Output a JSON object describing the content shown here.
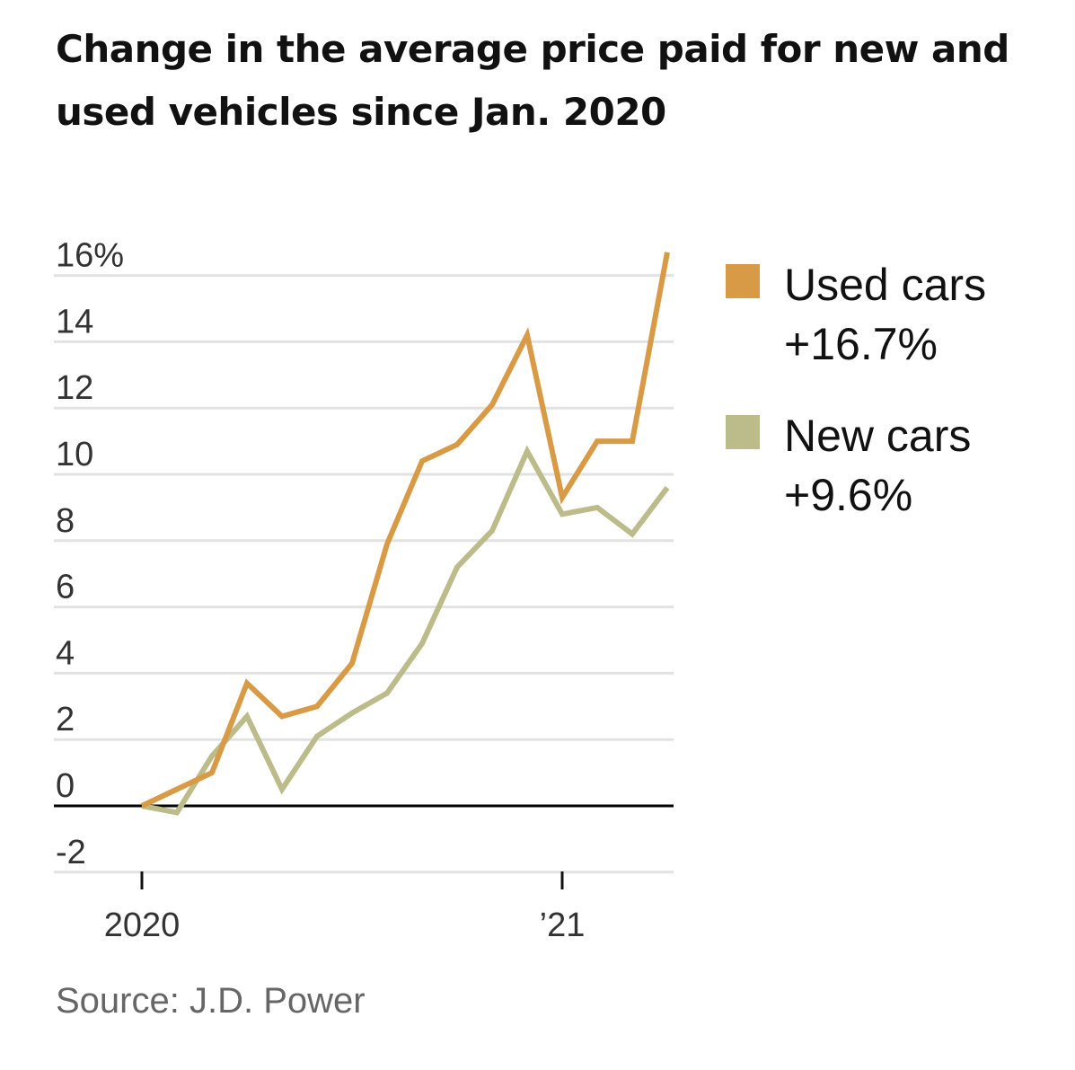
{
  "title": "Change in the average price paid for new and used vehicles since Jan. 2020",
  "source": "Source: J.D. Power",
  "chart_data": {
    "type": "line",
    "title": "Change in the average price paid for new and used vehicles since Jan. 2020",
    "xlabel": "",
    "ylabel": "",
    "ylim": [
      -2,
      16.7
    ],
    "y_ticks": [
      16,
      14,
      12,
      10,
      8,
      6,
      4,
      2,
      0,
      -2
    ],
    "y_tick_labels": [
      "16%",
      "14",
      "12",
      "10",
      "8",
      "6",
      "4",
      "2",
      "0",
      "-2"
    ],
    "x_tick_labels": [
      {
        "label": "2020",
        "x": "2020-01"
      },
      {
        "label": "’21",
        "x": "2021-01"
      }
    ],
    "x": [
      "2020-01",
      "2020-02",
      "2020-03",
      "2020-04",
      "2020-05",
      "2020-06",
      "2020-07",
      "2020-08",
      "2020-09",
      "2020-10",
      "2020-11",
      "2020-12",
      "2021-01",
      "2021-02",
      "2021-03",
      "2021-04"
    ],
    "grid": true,
    "legend_position": "right",
    "series": [
      {
        "name": "Used cars",
        "change_label": "+16.7%",
        "color": "#d99a45",
        "values": [
          0,
          0.5,
          1.0,
          3.7,
          2.7,
          3.0,
          4.3,
          7.9,
          10.4,
          10.9,
          12.1,
          14.2,
          9.3,
          11.0,
          11.0,
          16.7
        ]
      },
      {
        "name": "New cars",
        "change_label": "+9.6%",
        "color": "#bcbb8a",
        "values": [
          0,
          -0.2,
          1.5,
          2.7,
          0.5,
          2.1,
          2.8,
          3.4,
          4.9,
          7.2,
          8.3,
          10.7,
          8.8,
          9.0,
          8.2,
          9.6
        ]
      }
    ]
  }
}
